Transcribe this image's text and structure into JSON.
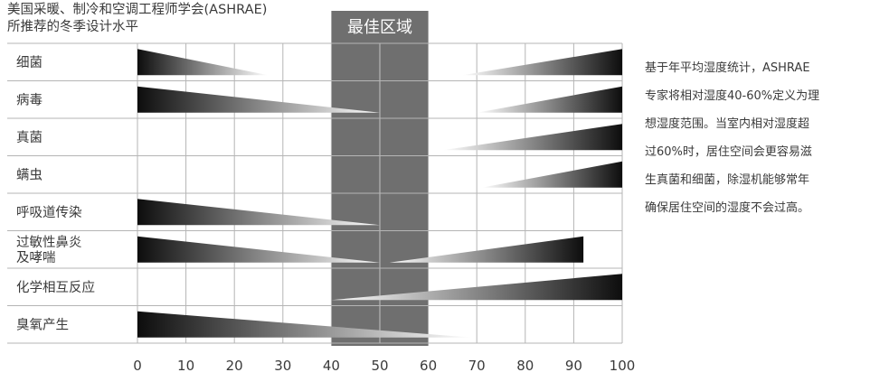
{
  "header": {
    "line1": "美国采暖、制冷和空调工程师学会(ASHRAE)",
    "line2": "所推荐的冬季设计水平"
  },
  "side_text": {
    "lines": [
      "基于年平均湿度统计，ASHRAE",
      "专家将相对湿度40-60%定义为理",
      "想湿度范围。当室内相对湿度超",
      "过60%时，居住空间会更容易滋",
      "生真菌和细菌，除湿机能够常年",
      "确保居住空间的湿度不会过高。"
    ]
  },
  "colors": {
    "optimal_zone": "#6f6f6f",
    "wedge_dark": "#0d0d0d",
    "wedge_light": "#ffffff",
    "grid": "#b5b5b5",
    "text": "#3a3a3a"
  },
  "chart_data": {
    "type": "bar",
    "x_range": [
      0,
      100
    ],
    "x_ticks": [
      0,
      10,
      20,
      30,
      40,
      50,
      60,
      70,
      80,
      90,
      100
    ],
    "xlabel": "",
    "ylabel": "",
    "title": "",
    "optimal_zone": {
      "label": "最佳区域",
      "from": 40,
      "to": 60
    },
    "categories": [
      {
        "label": [
          "细菌"
        ],
        "low": {
          "from": 0,
          "to": 27
        },
        "high": {
          "from": 67,
          "to": 100
        }
      },
      {
        "label": [
          "病毒"
        ],
        "low": {
          "from": 0,
          "to": 50
        },
        "high": {
          "from": 70,
          "to": 100
        }
      },
      {
        "label": [
          "真菌"
        ],
        "low": null,
        "high": {
          "from": 63,
          "to": 100
        }
      },
      {
        "label": [
          "螨虫"
        ],
        "low": null,
        "high": {
          "from": 71,
          "to": 100
        }
      },
      {
        "label": [
          "呼吸道传染"
        ],
        "low": {
          "from": 0,
          "to": 50
        },
        "high": null
      },
      {
        "label": [
          "过敏性鼻炎",
          "及哮喘"
        ],
        "low": {
          "from": 0,
          "to": 50
        },
        "high": {
          "from": 52,
          "to": 92
        }
      },
      {
        "label": [
          "化学相互反应"
        ],
        "low": null,
        "high": {
          "from": 40,
          "to": 100
        }
      },
      {
        "label": [
          "臭氧产生"
        ],
        "low": {
          "from": 0,
          "to": 69
        },
        "high": null
      }
    ]
  }
}
